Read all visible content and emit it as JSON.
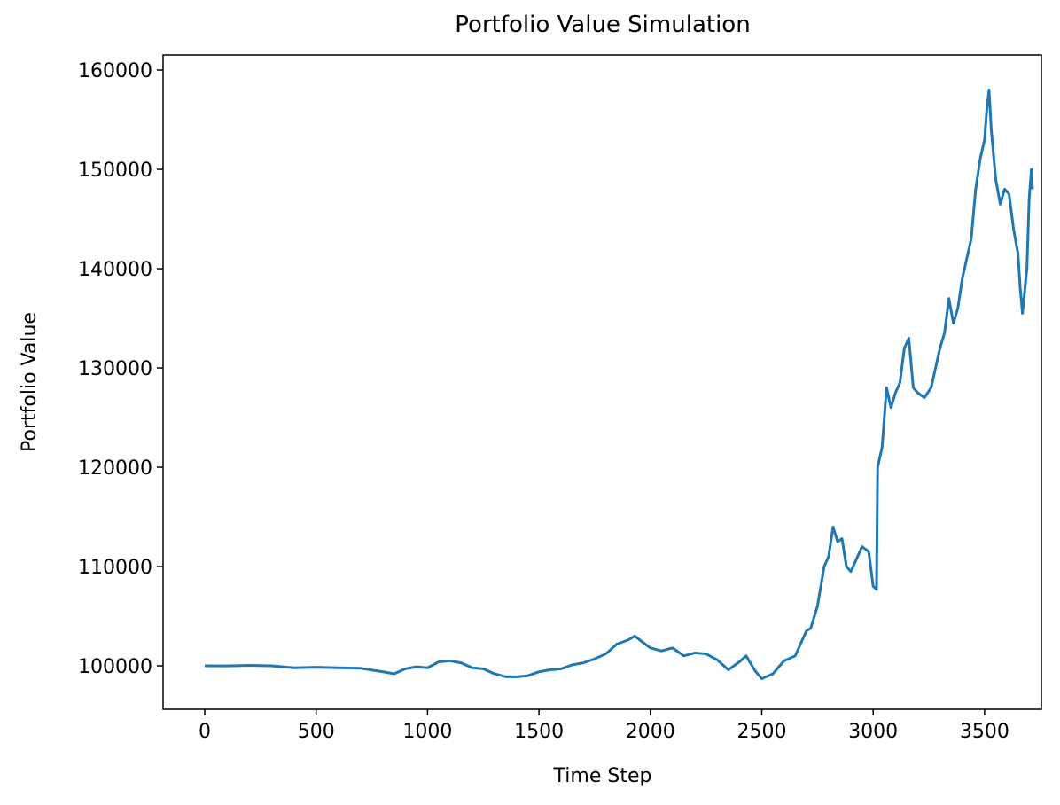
{
  "chart_data": {
    "type": "line",
    "title": "Portfolio Value Simulation",
    "x_label": "Time Step",
    "y_label": "Portfolio Value",
    "x": [
      0,
      100,
      200,
      300,
      400,
      500,
      600,
      700,
      800,
      850,
      900,
      950,
      1000,
      1050,
      1100,
      1150,
      1200,
      1250,
      1300,
      1350,
      1400,
      1450,
      1500,
      1550,
      1600,
      1650,
      1700,
      1750,
      1800,
      1850,
      1900,
      1930,
      1970,
      2000,
      2050,
      2100,
      2150,
      2200,
      2250,
      2300,
      2350,
      2400,
      2430,
      2470,
      2500,
      2550,
      2600,
      2650,
      2700,
      2720,
      2750,
      2780,
      2800,
      2820,
      2840,
      2860,
      2880,
      2900,
      2920,
      2950,
      2980,
      3000,
      3015,
      3020,
      3040,
      3060,
      3080,
      3100,
      3120,
      3140,
      3160,
      3180,
      3200,
      3230,
      3260,
      3300,
      3320,
      3340,
      3360,
      3380,
      3400,
      3420,
      3440,
      3460,
      3480,
      3500,
      3510,
      3520,
      3530,
      3550,
      3570,
      3590,
      3610,
      3630,
      3650,
      3660,
      3670,
      3690,
      3700,
      3710,
      3715
    ],
    "series": [
      {
        "color": "#1f77b4",
        "values": [
          100000,
          99990,
          100050,
          100000,
          99800,
          99850,
          99800,
          99750,
          99400,
          99200,
          99700,
          99900,
          99800,
          100400,
          100500,
          100300,
          99800,
          99700,
          99200,
          98900,
          98900,
          99000,
          99400,
          99600,
          99700,
          100100,
          100300,
          100700,
          101200,
          102200,
          102600,
          103000,
          102300,
          101800,
          101500,
          101800,
          101000,
          101300,
          101200,
          100600,
          99600,
          100400,
          101000,
          99500,
          98700,
          99200,
          100500,
          101000,
          103500,
          103800,
          106000,
          110000,
          111000,
          114000,
          112500,
          112800,
          110000,
          109500,
          110500,
          112000,
          111500,
          108000,
          107700,
          120000,
          122000,
          128000,
          126000,
          127500,
          128500,
          132000,
          133000,
          128000,
          127500,
          127000,
          128000,
          132000,
          133500,
          137000,
          134500,
          136000,
          139000,
          141000,
          143000,
          148000,
          151000,
          153000,
          156000,
          158000,
          154000,
          149000,
          146500,
          148000,
          147500,
          144000,
          141500,
          138000,
          135500,
          140000,
          147000,
          150000,
          148000
        ]
      }
    ],
    "xlim": [
      -187,
      3755
    ],
    "ylim": [
      95625,
      161520
    ],
    "xticks": [
      0,
      500,
      1000,
      1500,
      2000,
      2500,
      3000,
      3500
    ],
    "yticks": [
      100000,
      110000,
      120000,
      130000,
      140000,
      150000,
      160000
    ]
  }
}
